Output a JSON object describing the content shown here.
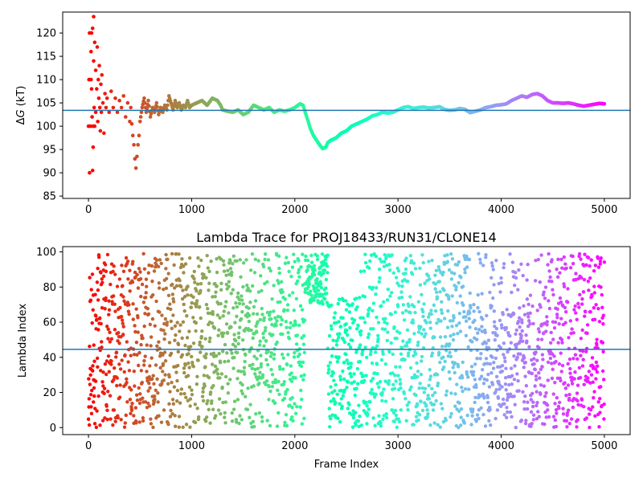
{
  "chart_data": [
    {
      "type": "scatter",
      "title": "",
      "xlabel": "",
      "ylabel": "ΔG (kT)",
      "xlim": [
        -250,
        5250
      ],
      "ylim": [
        84.5,
        124.5
      ],
      "xticks": [
        0,
        1000,
        2000,
        3000,
        4000,
        5000
      ],
      "yticks": [
        85,
        90,
        95,
        100,
        105,
        110,
        115,
        120
      ],
      "colormap": "rainbow",
      "color_by": "frame_index_descending",
      "hline": {
        "y": 103.4,
        "color": "#1f77b4"
      },
      "grid": false,
      "series": [
        {
          "points": [
            [
              0,
              100
            ],
            [
              5,
              110
            ],
            [
              10,
              90
            ],
            [
              10,
              120
            ],
            [
              20,
              100
            ],
            [
              25,
              110
            ],
            [
              25,
              116
            ],
            [
              30,
              120
            ],
            [
              30,
              108
            ],
            [
              35,
              102
            ],
            [
              40,
              90.5
            ],
            [
              40,
              121
            ],
            [
              45,
              100
            ],
            [
              45,
              95.5
            ],
            [
              50,
              123.5
            ],
            [
              50,
              114
            ],
            [
              55,
              104
            ],
            [
              60,
              118
            ],
            [
              60,
              100
            ],
            [
              70,
              112
            ],
            [
              70,
              103
            ],
            [
              80,
              108
            ],
            [
              85,
              117
            ],
            [
              90,
              101
            ],
            [
              95,
              110
            ],
            [
              100,
              106
            ],
            [
              105,
              113
            ],
            [
              110,
              104
            ],
            [
              115,
              99
            ],
            [
              120,
              109
            ],
            [
              125,
              103
            ],
            [
              130,
              111
            ],
            [
              140,
              105
            ],
            [
              150,
              98.5
            ],
            [
              160,
              107
            ],
            [
              170,
              104
            ],
            [
              180,
              106
            ],
            [
              200,
              103
            ],
            [
              220,
              107.5
            ],
            [
              240,
              104
            ],
            [
              260,
              106
            ],
            [
              280,
              103
            ],
            [
              300,
              105.5
            ],
            [
              320,
              104
            ],
            [
              340,
              106.5
            ],
            [
              360,
              102
            ],
            [
              380,
              105
            ],
            [
              400,
              101
            ],
            [
              410,
              104
            ],
            [
              420,
              100.5
            ],
            [
              430,
              98
            ],
            [
              440,
              96
            ],
            [
              450,
              93
            ],
            [
              460,
              91
            ],
            [
              470,
              93.5
            ],
            [
              480,
              96
            ],
            [
              490,
              98
            ],
            [
              500,
              101
            ],
            [
              520,
              104
            ],
            [
              540,
              106
            ],
            [
              560,
              103
            ],
            [
              580,
              105.5
            ],
            [
              600,
              102
            ],
            [
              620,
              104
            ],
            [
              640,
              103
            ],
            [
              660,
              105
            ],
            [
              680,
              102.5
            ],
            [
              700,
              104
            ],
            [
              720,
              103
            ],
            [
              740,
              104.5
            ],
            [
              760,
              103.5
            ],
            [
              780,
              106.5
            ],
            [
              800,
              105
            ],
            [
              820,
              103.5
            ],
            [
              840,
              105.5
            ],
            [
              860,
              104
            ],
            [
              880,
              105
            ],
            [
              900,
              103.5
            ],
            [
              920,
              104.5
            ],
            [
              940,
              104
            ],
            [
              960,
              105.5
            ],
            [
              980,
              104
            ],
            [
              1000,
              104.5
            ],
            [
              1050,
              105
            ],
            [
              1100,
              105.5
            ],
            [
              1150,
              104.5
            ],
            [
              1200,
              106
            ],
            [
              1250,
              105.5
            ],
            [
              1280,
              104.5
            ],
            [
              1300,
              103.5
            ],
            [
              1350,
              103.2
            ],
            [
              1400,
              103
            ],
            [
              1450,
              103.5
            ],
            [
              1500,
              102.5
            ],
            [
              1550,
              103
            ],
            [
              1600,
              104.5
            ],
            [
              1650,
              104
            ],
            [
              1700,
              103.5
            ],
            [
              1750,
              104
            ],
            [
              1800,
              103
            ],
            [
              1850,
              103.5
            ],
            [
              1900,
              103.2
            ],
            [
              1950,
              103.5
            ],
            [
              2000,
              104
            ],
            [
              2050,
              104.8
            ],
            [
              2080,
              104.5
            ],
            [
              2100,
              103
            ],
            [
              2130,
              101
            ],
            [
              2150,
              99.5
            ],
            [
              2180,
              98
            ],
            [
              2210,
              97
            ],
            [
              2240,
              96
            ],
            [
              2270,
              95.2
            ],
            [
              2300,
              95.5
            ],
            [
              2320,
              96.5
            ],
            [
              2350,
              97
            ],
            [
              2400,
              97.5
            ],
            [
              2450,
              98.5
            ],
            [
              2500,
              99
            ],
            [
              2550,
              100
            ],
            [
              2600,
              100.5
            ],
            [
              2650,
              101
            ],
            [
              2700,
              101.5
            ],
            [
              2750,
              102.2
            ],
            [
              2800,
              102.5
            ],
            [
              2850,
              103
            ],
            [
              2900,
              102.8
            ],
            [
              2950,
              103
            ],
            [
              3000,
              103.5
            ],
            [
              3050,
              104
            ],
            [
              3100,
              104.2
            ],
            [
              3150,
              103.8
            ],
            [
              3200,
              104
            ],
            [
              3250,
              104.1
            ],
            [
              3300,
              103.9
            ],
            [
              3350,
              104
            ],
            [
              3400,
              104.2
            ],
            [
              3450,
              103.6
            ],
            [
              3500,
              103.4
            ],
            [
              3550,
              103.5
            ],
            [
              3600,
              103.8
            ],
            [
              3650,
              103.6
            ],
            [
              3700,
              102.9
            ],
            [
              3750,
              103.2
            ],
            [
              3800,
              103.5
            ],
            [
              3850,
              104
            ],
            [
              3900,
              104.2
            ],
            [
              3950,
              104.5
            ],
            [
              4000,
              104.6
            ],
            [
              4050,
              104.8
            ],
            [
              4100,
              105.5
            ],
            [
              4150,
              106
            ],
            [
              4200,
              106.5
            ],
            [
              4250,
              106.2
            ],
            [
              4300,
              106.8
            ],
            [
              4350,
              107
            ],
            [
              4400,
              106.5
            ],
            [
              4450,
              105.5
            ],
            [
              4500,
              105
            ],
            [
              4550,
              105
            ],
            [
              4600,
              104.9
            ],
            [
              4650,
              105
            ],
            [
              4700,
              104.8
            ],
            [
              4750,
              104.5
            ],
            [
              4800,
              104.3
            ],
            [
              4850,
              104.5
            ],
            [
              4900,
              104.7
            ],
            [
              4950,
              104.9
            ],
            [
              5000,
              104.8
            ]
          ]
        }
      ]
    },
    {
      "type": "scatter",
      "title": "Lambda Trace for PROJ18433/RUN31/CLONE14",
      "xlabel": "Frame Index",
      "ylabel": "Lambda Index",
      "xlim": [
        -250,
        5250
      ],
      "ylim": [
        -4,
        103
      ],
      "xticks": [
        0,
        1000,
        2000,
        3000,
        4000,
        5000
      ],
      "yticks": [
        0,
        20,
        40,
        60,
        80,
        100
      ],
      "colormap": "rainbow",
      "color_by": "frame_index_descending",
      "hline": {
        "y": 44.5,
        "color": "#1f77b4"
      },
      "grid": false,
      "point_count": 5000,
      "sampling": "lambda index random over 0-99 per frame",
      "gaps": [
        {
          "frames": [
            2100,
            2320
          ],
          "lambda_range": [
            70,
            99
          ],
          "description": "dense cluster near top"
        },
        {
          "frames": [
            2320,
            2640
          ],
          "lambda_range": [
            0,
            75
          ],
          "description": "dense cluster at low/mid lambda"
        },
        {
          "frames": [
            3700,
            4400
          ],
          "lambda_range": [
            0,
            70
          ],
          "description": "denser low region"
        }
      ]
    }
  ]
}
